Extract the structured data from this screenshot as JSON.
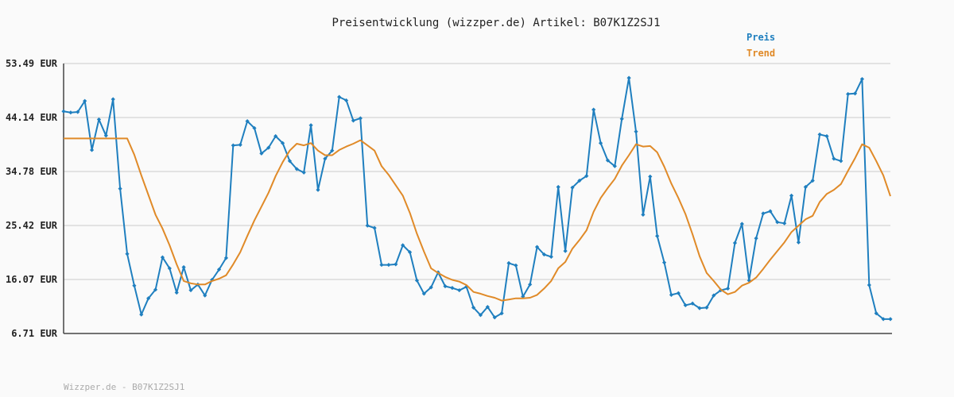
{
  "chart_data": {
    "type": "line",
    "title": "Preisentwicklung (wizzper.de) Artikel: B07K1Z2SJ1",
    "ylim": [
      6.71,
      53.49
    ],
    "yticks": [
      "6.71 EUR",
      "16.07 EUR",
      "25.42 EUR",
      "34.78 EUR",
      "44.14 EUR",
      "53.49 EUR"
    ],
    "ytick_values": [
      6.71,
      16.07,
      25.42,
      34.78,
      44.14,
      53.49
    ],
    "grid": true,
    "legend_position": "top-right",
    "series": [
      {
        "name": "Preis",
        "color": "#1f7fbf",
        "markers": true,
        "values": [
          45.2,
          45.0,
          45.1,
          47.0,
          38.5,
          43.8,
          41.0,
          47.3,
          31.8,
          20.5,
          15.0,
          10.0,
          12.8,
          14.3,
          19.9,
          18.0,
          13.8,
          18.2,
          14.2,
          15.2,
          13.3,
          16.0,
          17.8,
          19.8,
          39.3,
          39.4,
          43.5,
          42.3,
          37.9,
          38.9,
          40.9,
          39.7,
          36.6,
          35.2,
          34.6,
          42.8,
          31.6,
          37.0,
          38.4,
          47.7,
          47.1,
          43.6,
          44.0,
          25.4,
          25.0,
          18.6,
          18.6,
          18.7,
          22.0,
          20.8,
          15.9,
          13.6,
          14.7,
          17.3,
          14.9,
          14.6,
          14.2,
          14.8,
          11.2,
          9.9,
          11.3,
          9.5,
          10.2,
          18.9,
          18.5,
          13.1,
          15.2,
          21.7,
          20.4,
          20.0,
          32.1,
          21.0,
          32.0,
          33.2,
          34.0,
          45.5,
          39.7,
          36.7,
          35.7,
          43.9,
          51.0,
          41.7,
          27.3,
          33.9,
          23.6,
          19.0,
          13.4,
          13.7,
          11.6,
          11.9,
          11.1,
          11.2,
          13.3,
          14.2,
          14.5,
          22.4,
          25.7,
          15.9,
          23.2,
          27.5,
          27.9,
          26.0,
          25.8,
          30.6,
          22.5,
          32.1,
          33.2,
          41.2,
          40.9,
          37.0,
          36.6,
          48.2,
          48.3,
          50.8,
          15.1,
          10.2,
          9.2,
          9.2
        ]
      },
      {
        "name": "Trend",
        "color": "#e08a28",
        "markers": false,
        "values": [
          40.5,
          40.5,
          40.5,
          40.5,
          40.5,
          40.5,
          40.5,
          40.5,
          40.5,
          40.5,
          37.7,
          34.1,
          30.7,
          27.3,
          24.9,
          22.0,
          18.7,
          15.8,
          15.4,
          15.2,
          15.2,
          15.8,
          16.2,
          16.8,
          18.7,
          20.8,
          23.6,
          26.3,
          28.7,
          31.1,
          34.0,
          36.4,
          38.4,
          39.6,
          39.3,
          39.7,
          38.4,
          37.6,
          37.6,
          38.5,
          39.1,
          39.6,
          40.2,
          39.3,
          38.4,
          35.7,
          34.2,
          32.4,
          30.6,
          27.6,
          24.0,
          20.9,
          18.0,
          17.2,
          16.5,
          16.0,
          15.7,
          15.1,
          13.9,
          13.6,
          13.2,
          12.9,
          12.4,
          12.6,
          12.8,
          12.8,
          12.9,
          13.4,
          14.5,
          15.8,
          18.0,
          19.1,
          21.4,
          22.9,
          24.6,
          27.8,
          30.2,
          31.9,
          33.5,
          35.8,
          37.6,
          39.5,
          39.1,
          39.2,
          38.1,
          35.6,
          32.7,
          30.2,
          27.4,
          23.9,
          20.1,
          17.2,
          15.8,
          14.3,
          13.5,
          13.9,
          15.0,
          15.5,
          16.4,
          17.9,
          19.5,
          21.0,
          22.5,
          24.3,
          25.4,
          26.5,
          27.1,
          29.5,
          30.9,
          31.6,
          32.6,
          34.9,
          37.1,
          39.5,
          38.9,
          36.6,
          34.1,
          30.5
        ]
      }
    ]
  },
  "footer": "Wizzper.de - B07K1Z2SJ1"
}
